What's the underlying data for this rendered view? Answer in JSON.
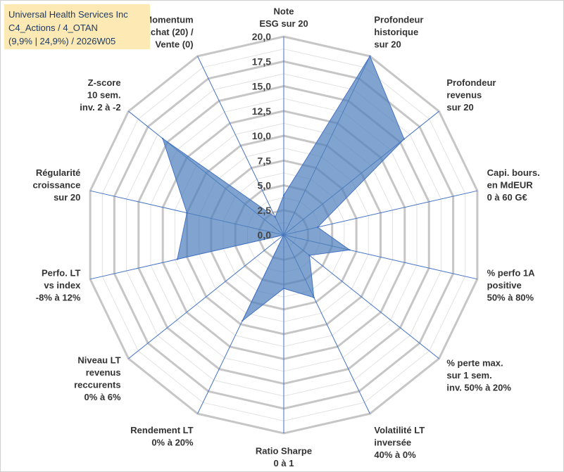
{
  "title_box": {
    "line1": "Universal Health Services Inc",
    "line2": "C4_Actions / 4_OTAN",
    "line3": "(9,9% | 24,9%) / 2026W05"
  },
  "chart_data": {
    "type": "radar",
    "title": "Universal Health Services Inc",
    "rlim": [
      0,
      20
    ],
    "grid": true,
    "tick_values": [
      0,
      2.5,
      5,
      7.5,
      10,
      12.5,
      15,
      17.5,
      20
    ],
    "tick_labels": [
      "0,0",
      "2,5",
      "5,0",
      "7,5",
      "10,0",
      "12,5",
      "15,0",
      "17,5",
      "20,0"
    ],
    "fill_color": "#4f81bd",
    "line_color": "#4472c4",
    "grid_color": "#c0c0c0",
    "categories": [
      [
        "Note",
        "ESG sur 20"
      ],
      [
        "Profondeur",
        "historique",
        "sur 20"
      ],
      [
        "Profondeur",
        "revenus",
        "sur 20"
      ],
      [
        "Capi. bours.",
        "en MdEUR",
        "0 à 60 G€"
      ],
      [
        "% perfo 1A",
        "positive",
        "50% à 80%"
      ],
      [
        "% perte max.",
        "sur 1 sem.",
        "inv. 50% à 20%"
      ],
      [
        "Volatilité LT",
        "inversée",
        "40% à 0%"
      ],
      [
        "Ratio Sharpe",
        "0 à 1"
      ],
      [
        "Rendement LT",
        "0% à 20%"
      ],
      [
        "Niveau LT",
        "revenus",
        "reccurents",
        "0% à 6%"
      ],
      [
        "Perfo. LT",
        "vs index",
        "-8% à 12%"
      ],
      [
        "Régularité",
        "croissance",
        "sur 20"
      ],
      [
        "Z-score",
        "10 sem.",
        "inv. 2 à -2"
      ],
      [
        "Momentum",
        "Achat (20) /",
        "Vente (0)"
      ]
    ],
    "series": [
      {
        "name": "Universal Health Services Inc",
        "values": [
          4.0,
          20.0,
          15.5,
          3.5,
          6.8,
          3.3,
          7.0,
          5.4,
          9.6,
          0.0,
          11.0,
          10.0,
          15.6,
          2.0
        ]
      }
    ]
  }
}
